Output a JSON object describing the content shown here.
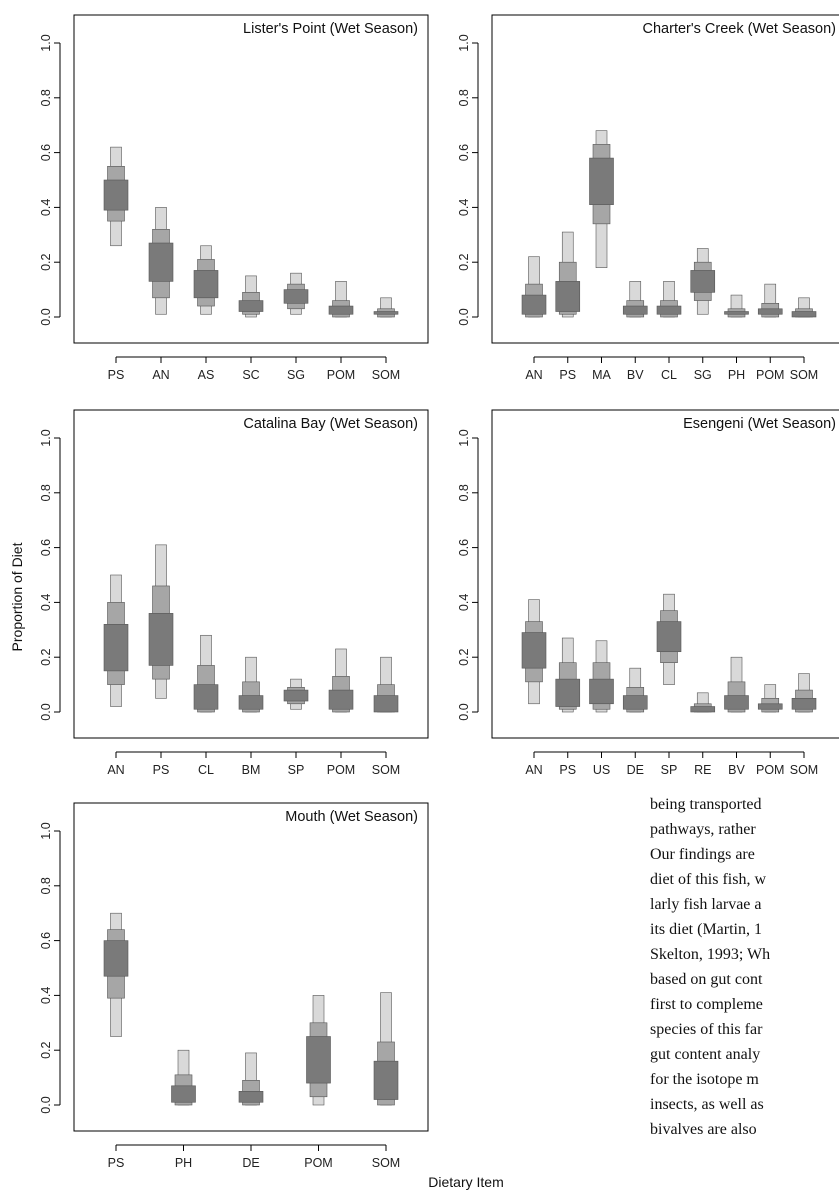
{
  "figure": {
    "ylabel": "Proportion of Diet",
    "xlabel": "Dietary Item"
  },
  "colors": {
    "band95": "#d9d9d9",
    "band75": "#a6a6a6",
    "band50": "#7a7a7a",
    "outline": "#555555"
  },
  "chart_data": [
    {
      "type": "boxplot",
      "title": "Lister's Point (Wet Season)",
      "ylim": [
        0,
        1
      ],
      "yticks": [
        "0.0",
        "0.2",
        "0.4",
        "0.6",
        "0.8",
        "1.0"
      ],
      "categories": [
        "PS",
        "AN",
        "AS",
        "SC",
        "SG",
        "POM",
        "SOM"
      ],
      "credible_intervals": [
        [
          0.26,
          0.35,
          0.39,
          0.5,
          0.55,
          0.62
        ],
        [
          0.01,
          0.07,
          0.13,
          0.27,
          0.32,
          0.4
        ],
        [
          0.01,
          0.04,
          0.07,
          0.17,
          0.21,
          0.26
        ],
        [
          0.0,
          0.01,
          0.02,
          0.06,
          0.09,
          0.15
        ],
        [
          0.01,
          0.03,
          0.05,
          0.1,
          0.12,
          0.16
        ],
        [
          0.0,
          0.0,
          0.01,
          0.04,
          0.06,
          0.13
        ],
        [
          0.0,
          0.0,
          0.01,
          0.02,
          0.03,
          0.07
        ]
      ]
    },
    {
      "type": "boxplot",
      "title": "Charter's Creek (Wet Season)",
      "ylim": [
        0,
        1
      ],
      "yticks": [
        "0.0",
        "0.2",
        "0.4",
        "0.6",
        "0.8",
        "1.0"
      ],
      "categories": [
        "AN",
        "PS",
        "MA",
        "BV",
        "CL",
        "SG",
        "PH",
        "POM",
        "SOM"
      ],
      "credible_intervals": [
        [
          0.0,
          0.0,
          0.01,
          0.08,
          0.12,
          0.22
        ],
        [
          0.0,
          0.01,
          0.02,
          0.13,
          0.2,
          0.31
        ],
        [
          0.18,
          0.34,
          0.41,
          0.58,
          0.63,
          0.68
        ],
        [
          0.0,
          0.0,
          0.01,
          0.04,
          0.06,
          0.13
        ],
        [
          0.0,
          0.0,
          0.01,
          0.04,
          0.06,
          0.13
        ],
        [
          0.01,
          0.06,
          0.09,
          0.17,
          0.2,
          0.25
        ],
        [
          0.0,
          0.0,
          0.01,
          0.02,
          0.03,
          0.08
        ],
        [
          0.0,
          0.0,
          0.01,
          0.03,
          0.05,
          0.12
        ],
        [
          0.0,
          0.0,
          0.0,
          0.02,
          0.03,
          0.07
        ]
      ]
    },
    {
      "type": "boxplot",
      "title": "Catalina Bay (Wet Season)",
      "ylim": [
        0,
        1
      ],
      "yticks": [
        "0.0",
        "0.2",
        "0.4",
        "0.6",
        "0.8",
        "1.0"
      ],
      "categories": [
        "AN",
        "PS",
        "CL",
        "BM",
        "SP",
        "POM",
        "SOM"
      ],
      "credible_intervals": [
        [
          0.02,
          0.1,
          0.15,
          0.32,
          0.4,
          0.5
        ],
        [
          0.05,
          0.12,
          0.17,
          0.36,
          0.46,
          0.61
        ],
        [
          0.0,
          0.0,
          0.01,
          0.1,
          0.17,
          0.28
        ],
        [
          0.0,
          0.0,
          0.01,
          0.06,
          0.11,
          0.2
        ],
        [
          0.01,
          0.03,
          0.04,
          0.08,
          0.09,
          0.12
        ],
        [
          0.0,
          0.0,
          0.01,
          0.08,
          0.13,
          0.23
        ],
        [
          0.0,
          0.0,
          0.0,
          0.06,
          0.1,
          0.2
        ]
      ]
    },
    {
      "type": "boxplot",
      "title": "Esengeni (Wet Season)",
      "ylim": [
        0,
        1
      ],
      "yticks": [
        "0.0",
        "0.2",
        "0.4",
        "0.6",
        "0.8",
        "1.0"
      ],
      "categories": [
        "AN",
        "PS",
        "US",
        "DE",
        "SP",
        "RE",
        "BV",
        "POM",
        "SOM"
      ],
      "credible_intervals": [
        [
          0.03,
          0.11,
          0.16,
          0.29,
          0.33,
          0.41
        ],
        [
          0.0,
          0.01,
          0.02,
          0.12,
          0.18,
          0.27
        ],
        [
          0.0,
          0.01,
          0.03,
          0.12,
          0.18,
          0.26
        ],
        [
          0.0,
          0.0,
          0.01,
          0.06,
          0.09,
          0.16
        ],
        [
          0.1,
          0.18,
          0.22,
          0.33,
          0.37,
          0.43
        ],
        [
          0.0,
          0.0,
          0.0,
          0.02,
          0.03,
          0.07
        ],
        [
          0.0,
          0.0,
          0.01,
          0.06,
          0.11,
          0.2
        ],
        [
          0.0,
          0.0,
          0.01,
          0.03,
          0.05,
          0.1
        ],
        [
          0.0,
          0.0,
          0.01,
          0.05,
          0.08,
          0.14
        ]
      ]
    },
    {
      "type": "boxplot",
      "title": "Mouth (Wet Season)",
      "ylim": [
        0,
        1
      ],
      "yticks": [
        "0.0",
        "0.2",
        "0.4",
        "0.6",
        "0.8",
        "1.0"
      ],
      "categories": [
        "PS",
        "PH",
        "DE",
        "POM",
        "SOM"
      ],
      "credible_intervals": [
        [
          0.25,
          0.39,
          0.47,
          0.6,
          0.64,
          0.7
        ],
        [
          0.0,
          0.0,
          0.01,
          0.07,
          0.11,
          0.2
        ],
        [
          0.0,
          0.0,
          0.01,
          0.05,
          0.09,
          0.19
        ],
        [
          0.0,
          0.03,
          0.08,
          0.25,
          0.3,
          0.4
        ],
        [
          0.0,
          0.0,
          0.02,
          0.16,
          0.23,
          0.41
        ]
      ]
    }
  ],
  "body_text": [
    "being transported",
    "pathways, rather",
    "Our findings are",
    "diet of this fish, w",
    "larly fish larvae a",
    "its diet (Martin, 1",
    "Skelton, 1993; Wh",
    "based on gut cont",
    "first to compleme",
    "species of this far",
    "gut content analy",
    "for the isotope m",
    "insects, as well as",
    "bivalves are also"
  ]
}
